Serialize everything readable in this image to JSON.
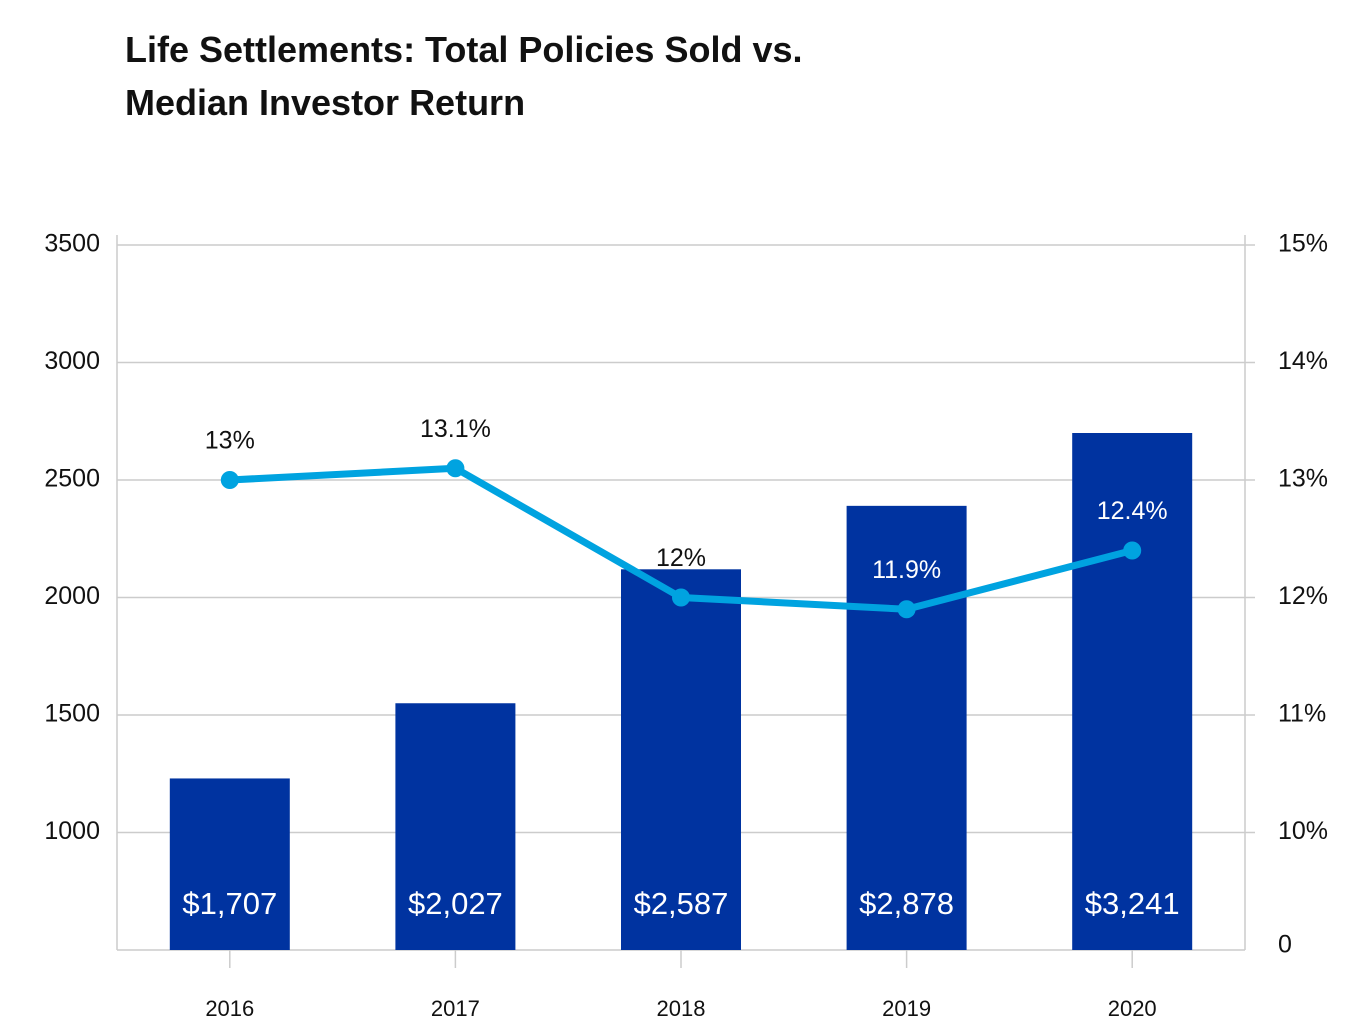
{
  "chart_data": {
    "type": "bar_line",
    "title_lines": [
      "Life Settlements: Total Policies Sold vs.",
      "Median Investor Return"
    ],
    "categories": [
      "2016",
      "2017",
      "2018",
      "2019",
      "2020"
    ],
    "series": [
      {
        "type": "bar",
        "color": "#0033a0",
        "values": [
          1230,
          1550,
          2120,
          2390,
          2700
        ],
        "bar_texts": [
          "$1,707",
          "$2,027",
          "$2,587",
          "$2,878",
          "$3,241"
        ]
      },
      {
        "type": "line",
        "axis": "y2",
        "color": "#00a3e0",
        "values": [
          13,
          13.1,
          12,
          11.9,
          12.4
        ],
        "value_labels": [
          "13%",
          "13.1%",
          "12%",
          "11.9%",
          "12.4%"
        ]
      }
    ],
    "ylim": [
      500,
      3500
    ],
    "yticks": [
      1000,
      1500,
      2000,
      2500,
      3000,
      3500
    ],
    "y2lim": [
      9,
      15
    ],
    "y2ticks": [
      {
        "value": 10,
        "label": "10%"
      },
      {
        "value": 11,
        "label": "11%"
      },
      {
        "value": 12,
        "label": "12%"
      },
      {
        "value": 13,
        "label": "13%"
      },
      {
        "value": 14,
        "label": "14%"
      },
      {
        "value": 15,
        "label": "15%"
      }
    ],
    "y2_bottom_label": "0",
    "grid": true
  }
}
